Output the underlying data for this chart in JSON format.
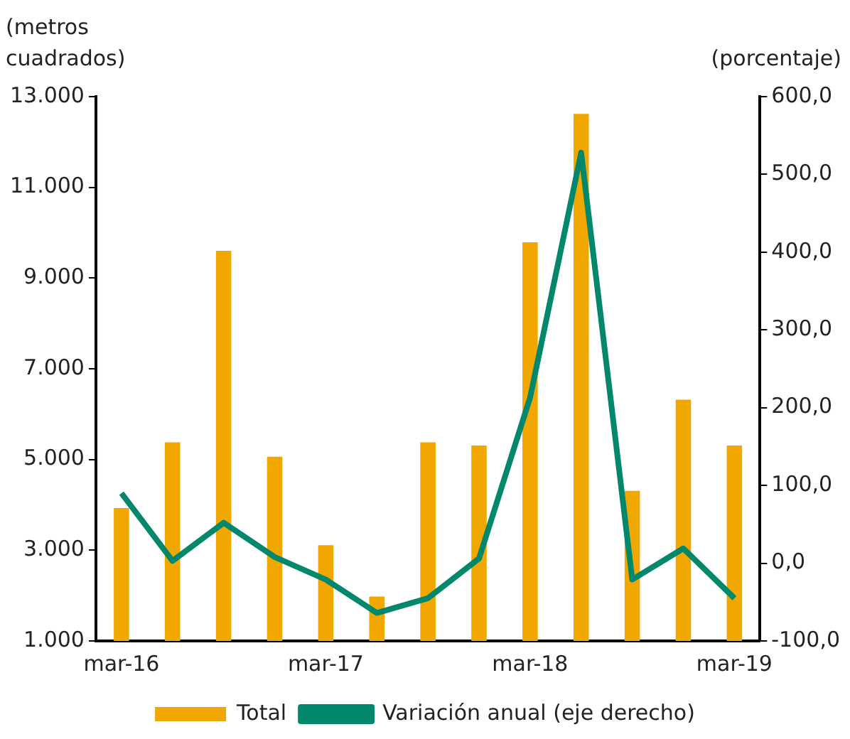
{
  "chart_data": {
    "type": "bar",
    "ylabel": "(metros cuadrados)",
    "y2label": "(porcentaje)",
    "categories": [
      "mar-16",
      null,
      null,
      null,
      "mar-17",
      null,
      null,
      null,
      "mar-18",
      null,
      null,
      null,
      "mar-19"
    ],
    "series": [
      {
        "name": "Total",
        "color": "#f0a800",
        "values": [
          3930,
          5380,
          9600,
          5060,
          3110,
          1980,
          5380,
          5310,
          9790,
          12620,
          4310,
          6320,
          5310
        ]
      },
      {
        "name": "Variación anual (eje derecho)",
        "type": "line",
        "axis": "y2",
        "color": "#00876c",
        "values": [
          90,
          3,
          52,
          8,
          -21,
          -64,
          -45,
          6,
          213,
          528,
          -21,
          19,
          -45
        ]
      }
    ],
    "ylim": [
      1000,
      13000
    ],
    "yticks": [
      {
        "value": 1000,
        "label": "1.000"
      },
      {
        "value": 3000,
        "label": "3.000"
      },
      {
        "value": 5000,
        "label": "5.000"
      },
      {
        "value": 7000,
        "label": "7.000"
      },
      {
        "value": 9000,
        "label": "9.000"
      },
      {
        "value": 11000,
        "label": "11.000"
      },
      {
        "value": 13000,
        "label": "13.000"
      }
    ],
    "y2lim": [
      -100,
      600
    ],
    "y2ticks": [
      {
        "value": -100,
        "label": "-100,0"
      },
      {
        "value": 0,
        "label": "0,0"
      },
      {
        "value": 100,
        "label": "100,0"
      },
      {
        "value": 200,
        "label": "200,0"
      },
      {
        "value": 300,
        "label": "300,0"
      },
      {
        "value": 400,
        "label": "400,0"
      },
      {
        "value": 500,
        "label": "500,0"
      },
      {
        "value": 600,
        "label": "600,0"
      }
    ],
    "grid": false,
    "legend": "bottom",
    "marker": "none"
  }
}
